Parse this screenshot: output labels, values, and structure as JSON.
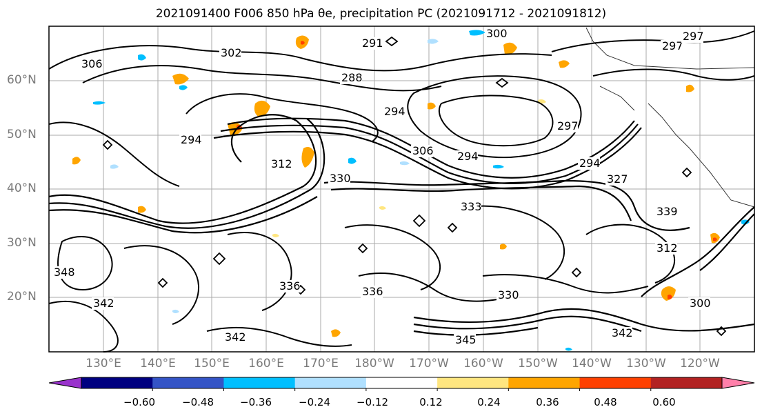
{
  "title": "2021091400 F006 850 hPa θe, precipitation PC (2021091712 - 2021091812)",
  "map": {
    "lat_labels": [
      "60°N",
      "50°N",
      "40°N",
      "30°N",
      "20°N"
    ],
    "lon_labels": [
      "130°E",
      "140°E",
      "150°E",
      "160°E",
      "170°E",
      "180°W",
      "170°W",
      "160°W",
      "150°W",
      "140°W",
      "130°W",
      "120°W"
    ],
    "contour_labels": [
      "306",
      "302",
      "291",
      "300",
      "288",
      "294",
      "297",
      "294",
      "306",
      "294",
      "312",
      "330",
      "297",
      "327",
      "333",
      "339",
      "330",
      "336",
      "342",
      "348",
      "342",
      "345",
      "342",
      "312",
      "336",
      "294",
      "300",
      "297"
    ]
  },
  "colorbar": {
    "tick_labels": [
      "−0.60",
      "−0.48",
      "−0.36",
      "−0.24",
      "−0.12",
      "0.12",
      "0.24",
      "0.36",
      "0.48",
      "0.60"
    ],
    "colors": [
      "#9932cc",
      "#000080",
      "#3454c6",
      "#00bfff",
      "#b0e0ff",
      "#ffffff",
      "#ffe680",
      "#ffa500",
      "#ff4000",
      "#b22222",
      "#ff80aa"
    ]
  }
}
